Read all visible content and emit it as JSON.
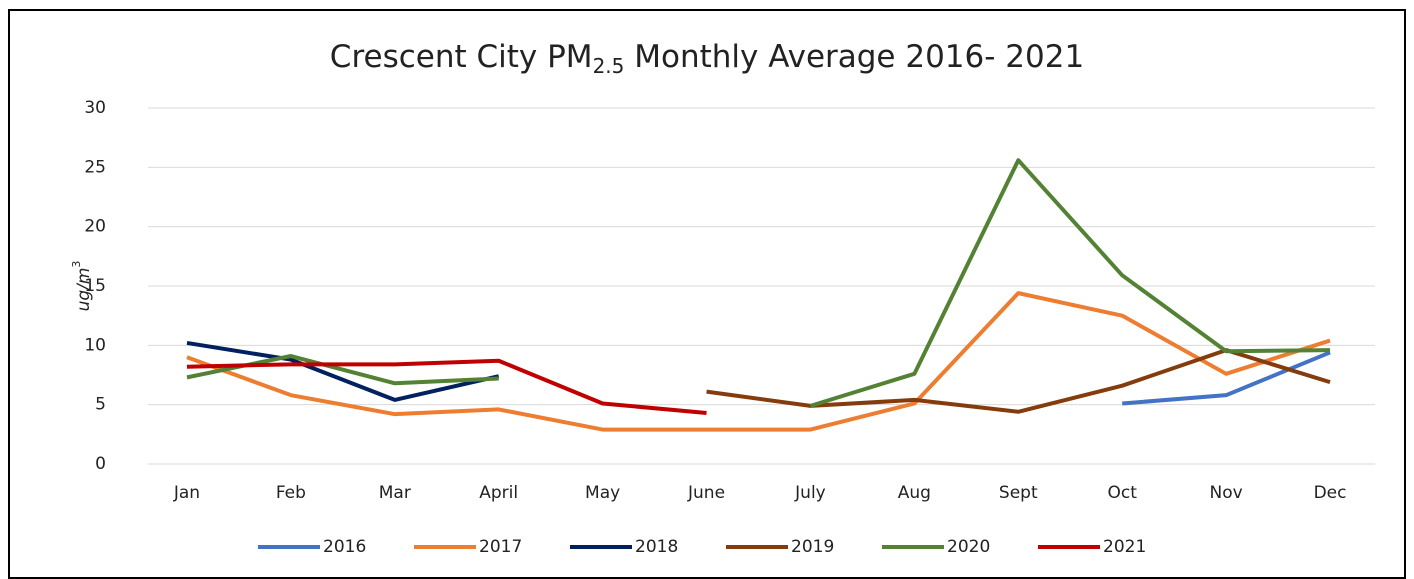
{
  "chart_data": {
    "type": "line",
    "title": [
      "Crescent City PM",
      "2.5",
      " Monthly Average 2016- 2021"
    ],
    "y_label": [
      "ug/m",
      "3"
    ],
    "categories": [
      "Jan",
      "Feb",
      "Mar",
      "April",
      "May",
      "June",
      "July",
      "Aug",
      "Sept",
      "Oct",
      "Nov",
      "Dec"
    ],
    "series": [
      {
        "name": "2016",
        "color": "#4472c4",
        "values": [
          null,
          null,
          null,
          null,
          null,
          null,
          null,
          null,
          null,
          5.1,
          5.8,
          9.4
        ]
      },
      {
        "name": "2017",
        "color": "#ed7d31",
        "values": [
          9,
          5.8,
          4.2,
          4.6,
          2.9,
          2.9,
          2.9,
          5.1,
          14.4,
          12.5,
          7.6,
          10.4
        ]
      },
      {
        "name": "2018",
        "color": "#002060",
        "values": [
          10.2,
          8.8,
          5.4,
          7.4,
          null,
          null,
          null,
          null,
          null,
          null,
          null,
          null
        ]
      },
      {
        "name": "2019",
        "color": "#843c0c",
        "values": [
          null,
          null,
          null,
          null,
          null,
          6.1,
          4.9,
          5.4,
          4.4,
          6.6,
          9.6,
          6.9
        ]
      },
      {
        "name": "2020",
        "color": "#548235",
        "values": [
          7.3,
          9.1,
          6.8,
          7.2,
          null,
          null,
          4.9,
          7.6,
          25.6,
          15.9,
          9.5,
          9.6
        ]
      },
      {
        "name": "2021",
        "color": "#c00000",
        "values": [
          8.2,
          8.4,
          8.4,
          8.7,
          5.1,
          4.3,
          null,
          null,
          null,
          null,
          null,
          null
        ]
      }
    ],
    "ylim": [
      0,
      30
    ],
    "yticks": [
      0,
      5,
      10,
      15,
      20,
      25,
      30
    ],
    "grid": true,
    "legend": "bottom"
  }
}
